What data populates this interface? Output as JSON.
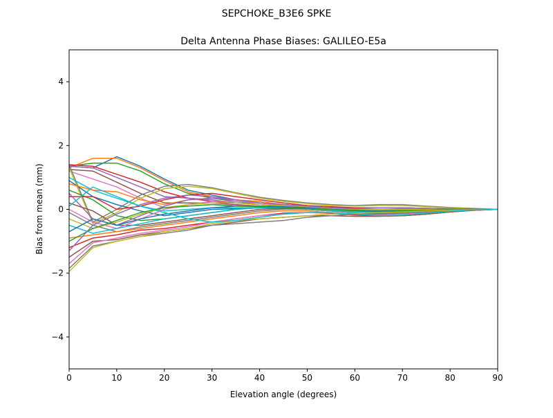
{
  "chart_data": {
    "type": "line",
    "suptitle": "SEPCHOKE_B3E6   SPKE",
    "title": "Delta Antenna Phase Biases: GALILEO-E5a",
    "xlabel": "Elevation angle (degrees)",
    "ylabel": "Bias from mean (mm)",
    "xlim": [
      0,
      90
    ],
    "ylim": [
      -5,
      5
    ],
    "xticks": [
      0,
      10,
      20,
      30,
      40,
      50,
      60,
      70,
      80,
      90
    ],
    "yticks": [
      -4,
      -2,
      0,
      2,
      4
    ],
    "ytick_labels": [
      "−4",
      "−2",
      "0",
      "2",
      "4"
    ],
    "grid": false,
    "colors": [
      "#1f77b4",
      "#ff7f0e",
      "#2ca02c",
      "#d62728",
      "#9467bd",
      "#8c564b",
      "#e377c2",
      "#7f7f7f",
      "#bcbd22",
      "#17becf"
    ],
    "x": [
      0,
      5,
      10,
      15,
      20,
      25,
      30,
      35,
      40,
      45,
      50,
      55,
      60,
      65,
      70,
      75,
      80,
      85,
      90
    ],
    "series": [
      {
        "values": [
          1.35,
          1.3,
          1.65,
          1.35,
          0.95,
          0.6,
          0.45,
          0.3,
          0.2,
          0.15,
          0.1,
          0.05,
          0.05,
          0.05,
          0.05,
          0.03,
          0.02,
          0.01,
          0
        ]
      },
      {
        "values": [
          1.3,
          1.6,
          1.6,
          1.3,
          0.9,
          0.55,
          0.4,
          0.3,
          0.2,
          0.12,
          0.08,
          0.05,
          0.05,
          0.05,
          0.05,
          0.03,
          0.02,
          0.01,
          0
        ]
      },
      {
        "values": [
          1.35,
          1.45,
          1.45,
          1.2,
          0.8,
          0.5,
          0.35,
          0.25,
          0.15,
          0.1,
          0.05,
          0,
          0,
          0,
          0.02,
          0.02,
          0.01,
          0,
          0
        ]
      },
      {
        "values": [
          1.4,
          1.35,
          1.1,
          0.85,
          0.55,
          0.35,
          0.25,
          0.2,
          0.15,
          0.1,
          0.05,
          0,
          -0.05,
          -0.05,
          0,
          0,
          0,
          0,
          0
        ]
      },
      {
        "values": [
          1.35,
          1.3,
          1.0,
          0.7,
          0.4,
          0.35,
          0.3,
          0.2,
          0.15,
          0.1,
          0.05,
          0,
          -0.05,
          -0.05,
          -0.02,
          0,
          0,
          0,
          0
        ]
      },
      {
        "values": [
          1.25,
          1.2,
          0.85,
          0.5,
          0.2,
          0.2,
          0.2,
          0.15,
          0.1,
          0.05,
          0.05,
          0,
          -0.05,
          -0.05,
          -0.02,
          0,
          0,
          0,
          0
        ]
      },
      {
        "values": [
          1.2,
          0.95,
          0.7,
          0.35,
          0.05,
          0.1,
          0.15,
          0.12,
          0.1,
          0.05,
          0,
          -0.05,
          -0.1,
          -0.1,
          -0.05,
          -0.03,
          0,
          0,
          0
        ]
      },
      {
        "values": [
          1.4,
          -0.4,
          0,
          0.45,
          0.72,
          0.78,
          0.68,
          0.52,
          0.38,
          0.28,
          0.2,
          0.15,
          0.12,
          0.15,
          0.15,
          0.1,
          0.06,
          0.03,
          0
        ]
      },
      {
        "values": [
          1.3,
          -0.45,
          -0.1,
          0.35,
          0.65,
          0.72,
          0.65,
          0.5,
          0.35,
          0.25,
          0.18,
          0.12,
          0.1,
          0.12,
          0.12,
          0.08,
          0.05,
          0.02,
          0
        ]
      },
      {
        "values": [
          1.0,
          0.6,
          0.35,
          0.1,
          -0.05,
          0,
          0.05,
          0.05,
          0.05,
          0.05,
          0,
          -0.05,
          -0.1,
          -0.1,
          -0.08,
          -0.05,
          -0.02,
          0,
          0
        ]
      },
      {
        "values": [
          0.9,
          0.4,
          0.15,
          -0.05,
          -0.2,
          -0.1,
          0,
          0.02,
          0.05,
          0.03,
          0,
          -0.05,
          -0.1,
          -0.12,
          -0.1,
          -0.05,
          -0.02,
          0,
          0
        ]
      },
      {
        "values": [
          0.8,
          0.6,
          0.55,
          0.3,
          0.15,
          0.3,
          0.35,
          0.3,
          0.25,
          0.15,
          0.1,
          0.05,
          0,
          0,
          0,
          0,
          0,
          0,
          0
        ]
      },
      {
        "values": [
          0.6,
          0.3,
          -0.2,
          -0.35,
          -0.3,
          -0.2,
          -0.1,
          0,
          0.05,
          0.05,
          0,
          -0.05,
          -0.1,
          -0.12,
          -0.1,
          -0.05,
          -0.02,
          0,
          0
        ]
      },
      {
        "values": [
          0.4,
          0.4,
          0.0,
          0.1,
          0.3,
          0.45,
          0.5,
          0.4,
          0.3,
          0.2,
          0.12,
          0.08,
          0.05,
          0.05,
          0.05,
          0.03,
          0.02,
          0.01,
          0
        ]
      },
      {
        "values": [
          0.5,
          -0.3,
          -0.5,
          -0.2,
          0.1,
          0.3,
          0.35,
          0.3,
          0.2,
          0.15,
          0.1,
          0.05,
          0,
          0,
          0,
          0,
          0,
          0,
          0
        ]
      },
      {
        "values": [
          0.2,
          -0.05,
          -0.5,
          -0.5,
          -0.4,
          -0.3,
          -0.2,
          -0.1,
          0,
          0.03,
          0,
          -0.05,
          -0.1,
          -0.15,
          -0.12,
          -0.08,
          -0.04,
          -0.01,
          0
        ]
      },
      {
        "values": [
          0,
          -0.4,
          -0.6,
          -0.3,
          0,
          0.15,
          0.25,
          0.25,
          0.2,
          0.15,
          0.1,
          0.05,
          0,
          -0.02,
          0,
          0,
          0,
          0,
          0
        ]
      },
      {
        "values": [
          -0.1,
          -0.5,
          -0.7,
          -0.55,
          -0.45,
          -0.35,
          -0.25,
          -0.15,
          -0.05,
          0,
          0,
          -0.05,
          -0.1,
          -0.15,
          -0.15,
          -0.1,
          -0.05,
          -0.02,
          0
        ]
      },
      {
        "values": [
          -0.3,
          -0.6,
          -0.4,
          -0.15,
          0.05,
          0.15,
          0.2,
          0.2,
          0.15,
          0.12,
          0.08,
          0.03,
          0,
          0,
          0,
          0,
          0,
          0,
          0
        ]
      },
      {
        "values": [
          -0.5,
          -0.75,
          -0.6,
          -0.45,
          -0.3,
          -0.2,
          -0.1,
          0,
          0.05,
          0.05,
          0.02,
          -0.03,
          -0.08,
          -0.1,
          -0.08,
          -0.05,
          -0.02,
          0,
          0
        ]
      },
      {
        "values": [
          -0.7,
          -0.3,
          -0.5,
          -0.3,
          -0.15,
          -0.05,
          0.05,
          0.1,
          0.1,
          0.08,
          0.05,
          0,
          -0.03,
          -0.05,
          -0.05,
          -0.03,
          -0.01,
          0,
          0
        ]
      },
      {
        "values": [
          -0.9,
          -0.8,
          -0.7,
          -0.6,
          -0.5,
          -0.4,
          -0.3,
          -0.2,
          -0.1,
          -0.05,
          -0.05,
          -0.1,
          -0.15,
          -0.2,
          -0.2,
          -0.15,
          -0.08,
          -0.03,
          0
        ]
      },
      {
        "values": [
          -1.0,
          -0.6,
          -0.35,
          -0.1,
          0.05,
          0.1,
          0.15,
          0.1,
          0.08,
          0.05,
          0.02,
          0,
          -0.05,
          -0.08,
          -0.05,
          -0.03,
          -0.01,
          0,
          0
        ]
      },
      {
        "values": [
          -1.2,
          -0.9,
          -0.8,
          -0.65,
          -0.6,
          -0.5,
          -0.4,
          -0.3,
          -0.2,
          -0.12,
          -0.1,
          -0.12,
          -0.18,
          -0.2,
          -0.2,
          -0.15,
          -0.08,
          -0.03,
          0
        ]
      },
      {
        "values": [
          -1.3,
          -0.5,
          -0.15,
          0.15,
          0.35,
          0.45,
          0.4,
          0.3,
          0.2,
          0.15,
          0.1,
          0.05,
          0.02,
          0.05,
          0.05,
          0.03,
          0.02,
          0.01,
          0
        ]
      },
      {
        "values": [
          -1.5,
          -1.0,
          -0.95,
          -0.8,
          -0.7,
          -0.6,
          -0.5,
          -0.4,
          -0.3,
          -0.25,
          -0.2,
          -0.2,
          -0.22,
          -0.22,
          -0.2,
          -0.15,
          -0.08,
          -0.03,
          0
        ]
      },
      {
        "values": [
          -1.7,
          -1.05,
          -0.9,
          -0.75,
          -0.65,
          -0.55,
          -0.4,
          -0.3,
          -0.2,
          -0.15,
          -0.1,
          -0.1,
          -0.15,
          -0.18,
          -0.15,
          -0.1,
          -0.05,
          -0.02,
          0
        ]
      },
      {
        "values": [
          -1.85,
          -1.15,
          -1.0,
          -0.85,
          -0.75,
          -0.65,
          -0.5,
          -0.45,
          -0.4,
          -0.35,
          -0.25,
          -0.2,
          -0.15,
          -0.15,
          -0.12,
          -0.08,
          -0.04,
          -0.02,
          0
        ]
      },
      {
        "values": [
          -1.95,
          -1.2,
          -1.0,
          -0.85,
          -0.7,
          -0.6,
          -0.45,
          -0.35,
          -0.3,
          -0.25,
          -0.2,
          -0.15,
          -0.12,
          -0.1,
          -0.08,
          -0.05,
          -0.03,
          -0.01,
          0
        ]
      },
      {
        "values": [
          0.1,
          0.7,
          0.4,
          0.1,
          -0.1,
          -0.3,
          -0.4,
          -0.35,
          -0.25,
          -0.15,
          -0.1,
          -0.1,
          -0.15,
          -0.2,
          -0.18,
          -0.12,
          -0.06,
          -0.02,
          0
        ]
      }
    ]
  }
}
